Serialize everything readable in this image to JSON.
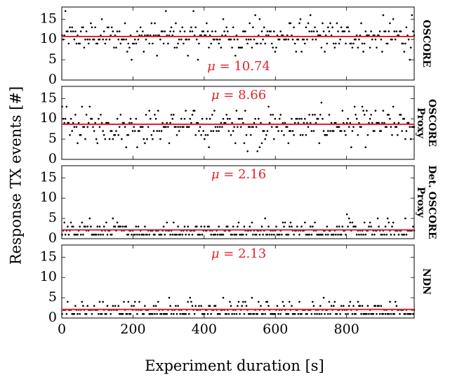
{
  "chart_data": {
    "type": "scatter",
    "xlabel": "Experiment duration [s]",
    "ylabel": "Response TX events [#]",
    "xlim": [
      0,
      990
    ],
    "ylim": [
      0,
      18
    ],
    "xticks": [
      0,
      200,
      400,
      600,
      800
    ],
    "yticks": [
      0,
      5,
      10,
      15
    ],
    "grid": false,
    "colors": {
      "points": "#000000",
      "mean_line": "#e3232c"
    },
    "panels": [
      {
        "name": "OSCORE",
        "label_lines": [
          "OSCORE"
        ],
        "mean": 10.74,
        "mean_label": "μ = 10.74",
        "value_levels": [
          5,
          6,
          7,
          8,
          9,
          10,
          11,
          12,
          13,
          14,
          15,
          16,
          17
        ],
        "level_weights": [
          1,
          2,
          6,
          12,
          24,
          30,
          28,
          22,
          14,
          8,
          4,
          2,
          1
        ],
        "y_range": [
          5,
          17
        ]
      },
      {
        "name": "OSCORE Proxy",
        "label_lines": [
          "OSCORE",
          "Proxy"
        ],
        "mean": 8.66,
        "mean_label": "μ = 8.66",
        "value_levels": [
          2,
          3,
          4,
          5,
          6,
          7,
          8,
          9,
          10,
          11,
          12,
          13,
          14
        ],
        "level_weights": [
          1,
          2,
          4,
          8,
          16,
          24,
          30,
          26,
          20,
          12,
          6,
          3,
          1
        ],
        "y_range": [
          2,
          14
        ]
      },
      {
        "name": "Det. OSCORE Proxy",
        "label_lines": [
          "Det. OSCORE",
          "Proxy"
        ],
        "mean": 2.16,
        "mean_label": "μ = 2.16",
        "value_levels": [
          1,
          2,
          3,
          4,
          5,
          6
        ],
        "level_weights": [
          40,
          30,
          20,
          6,
          3,
          1
        ],
        "y_range": [
          1,
          6
        ]
      },
      {
        "name": "NDN",
        "label_lines": [
          "NDN"
        ],
        "mean": 2.13,
        "mean_label": "μ = 2.13",
        "value_levels": [
          1,
          2,
          3,
          4,
          5,
          6
        ],
        "level_weights": [
          42,
          30,
          18,
          6,
          3,
          1
        ],
        "y_range": [
          1,
          6
        ]
      }
    ]
  }
}
